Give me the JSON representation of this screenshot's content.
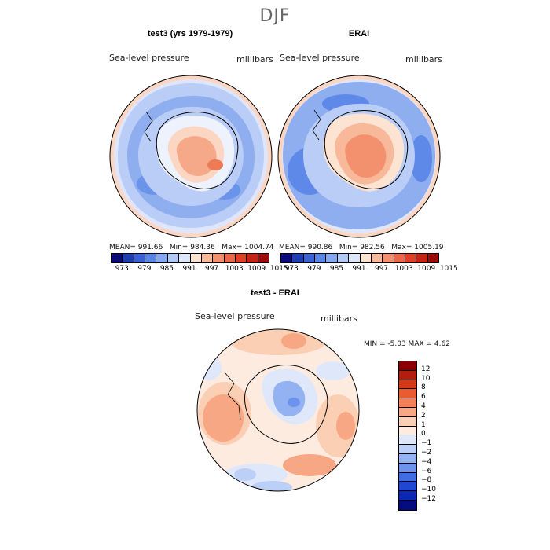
{
  "figure": {
    "title": "DJF"
  },
  "panels": {
    "test": {
      "title": "test3 (yrs 1979-1979)",
      "variable": "Sea-level pressure",
      "units": "millibars",
      "mean": "MEAN= 991.66",
      "min": "Min= 984.36",
      "max": "Max= 1004.74"
    },
    "ref": {
      "title": "ERAI",
      "variable": "Sea-level pressure",
      "units": "millibars",
      "mean": "MEAN= 990.86",
      "min": "Min= 982.56",
      "max": "Max= 1005.19"
    },
    "diff": {
      "title": "test3 - ERAI",
      "variable": "Sea-level pressure",
      "units": "millibars",
      "stats": "MIN =  -5.03  MAX =   4.62"
    }
  },
  "colorbar_abs": {
    "labels": [
      "973",
      "979",
      "985",
      "991",
      "997",
      "1003",
      "1009",
      "1015"
    ],
    "colors": [
      "#0a0a7a",
      "#1f3fb0",
      "#3a62d6",
      "#5a86e6",
      "#86a8ef",
      "#b3c9f5",
      "#dde7fa",
      "#fde3d2",
      "#f8b99a",
      "#f3916e",
      "#ec6848",
      "#e04026",
      "#c52414",
      "#9b0b0a"
    ]
  },
  "colorbar_diff": {
    "labels": [
      "12",
      "10",
      "8",
      "6",
      "4",
      "2",
      "1",
      "0",
      "-1",
      "-2",
      "-4",
      "-6",
      "-8",
      "-10",
      "-12"
    ],
    "colors": [
      "#8a0000",
      "#b31d0c",
      "#d43a18",
      "#ec5a32",
      "#f3805a",
      "#f7a784",
      "#fbcfb3",
      "#fdebe0",
      "#dfe8fb",
      "#bcd0f7",
      "#93b2f1",
      "#6d93ec",
      "#3f6be3",
      "#1f47d4",
      "#0c27b5",
      "#050c80"
    ]
  }
}
